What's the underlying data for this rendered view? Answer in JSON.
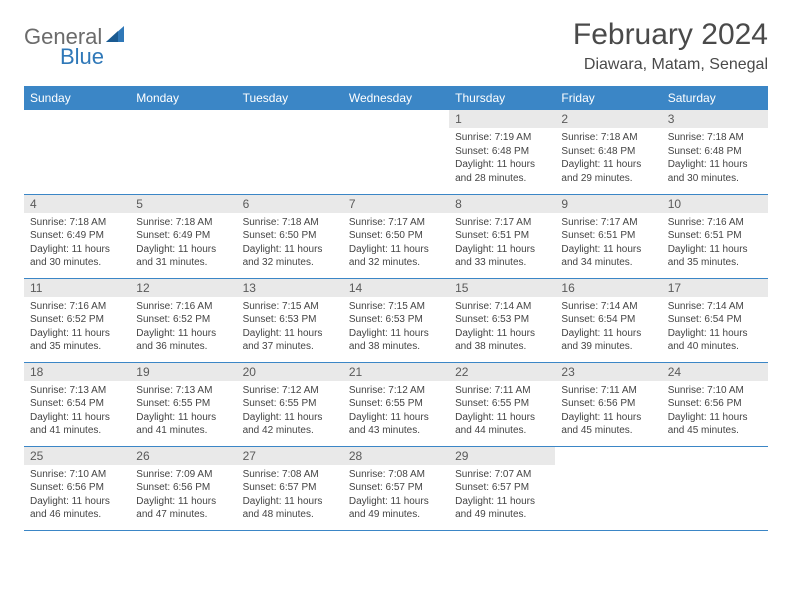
{
  "brand": {
    "part1": "General",
    "part2": "Blue"
  },
  "title": "February 2024",
  "location": "Diawara, Matam, Senegal",
  "colors": {
    "header_bg": "#3b86c6",
    "header_text": "#ffffff",
    "daynum_bg": "#e9e9e9",
    "border": "#3b86c6",
    "brand_gray": "#6b6b6b",
    "brand_blue": "#2f78b8"
  },
  "dayNames": [
    "Sunday",
    "Monday",
    "Tuesday",
    "Wednesday",
    "Thursday",
    "Friday",
    "Saturday"
  ],
  "weeks": [
    [
      null,
      null,
      null,
      null,
      {
        "n": "1",
        "sr": "Sunrise: 7:19 AM",
        "ss": "Sunset: 6:48 PM",
        "dl": "Daylight: 11 hours and 28 minutes."
      },
      {
        "n": "2",
        "sr": "Sunrise: 7:18 AM",
        "ss": "Sunset: 6:48 PM",
        "dl": "Daylight: 11 hours and 29 minutes."
      },
      {
        "n": "3",
        "sr": "Sunrise: 7:18 AM",
        "ss": "Sunset: 6:48 PM",
        "dl": "Daylight: 11 hours and 30 minutes."
      }
    ],
    [
      {
        "n": "4",
        "sr": "Sunrise: 7:18 AM",
        "ss": "Sunset: 6:49 PM",
        "dl": "Daylight: 11 hours and 30 minutes."
      },
      {
        "n": "5",
        "sr": "Sunrise: 7:18 AM",
        "ss": "Sunset: 6:49 PM",
        "dl": "Daylight: 11 hours and 31 minutes."
      },
      {
        "n": "6",
        "sr": "Sunrise: 7:18 AM",
        "ss": "Sunset: 6:50 PM",
        "dl": "Daylight: 11 hours and 32 minutes."
      },
      {
        "n": "7",
        "sr": "Sunrise: 7:17 AM",
        "ss": "Sunset: 6:50 PM",
        "dl": "Daylight: 11 hours and 32 minutes."
      },
      {
        "n": "8",
        "sr": "Sunrise: 7:17 AM",
        "ss": "Sunset: 6:51 PM",
        "dl": "Daylight: 11 hours and 33 minutes."
      },
      {
        "n": "9",
        "sr": "Sunrise: 7:17 AM",
        "ss": "Sunset: 6:51 PM",
        "dl": "Daylight: 11 hours and 34 minutes."
      },
      {
        "n": "10",
        "sr": "Sunrise: 7:16 AM",
        "ss": "Sunset: 6:51 PM",
        "dl": "Daylight: 11 hours and 35 minutes."
      }
    ],
    [
      {
        "n": "11",
        "sr": "Sunrise: 7:16 AM",
        "ss": "Sunset: 6:52 PM",
        "dl": "Daylight: 11 hours and 35 minutes."
      },
      {
        "n": "12",
        "sr": "Sunrise: 7:16 AM",
        "ss": "Sunset: 6:52 PM",
        "dl": "Daylight: 11 hours and 36 minutes."
      },
      {
        "n": "13",
        "sr": "Sunrise: 7:15 AM",
        "ss": "Sunset: 6:53 PM",
        "dl": "Daylight: 11 hours and 37 minutes."
      },
      {
        "n": "14",
        "sr": "Sunrise: 7:15 AM",
        "ss": "Sunset: 6:53 PM",
        "dl": "Daylight: 11 hours and 38 minutes."
      },
      {
        "n": "15",
        "sr": "Sunrise: 7:14 AM",
        "ss": "Sunset: 6:53 PM",
        "dl": "Daylight: 11 hours and 38 minutes."
      },
      {
        "n": "16",
        "sr": "Sunrise: 7:14 AM",
        "ss": "Sunset: 6:54 PM",
        "dl": "Daylight: 11 hours and 39 minutes."
      },
      {
        "n": "17",
        "sr": "Sunrise: 7:14 AM",
        "ss": "Sunset: 6:54 PM",
        "dl": "Daylight: 11 hours and 40 minutes."
      }
    ],
    [
      {
        "n": "18",
        "sr": "Sunrise: 7:13 AM",
        "ss": "Sunset: 6:54 PM",
        "dl": "Daylight: 11 hours and 41 minutes."
      },
      {
        "n": "19",
        "sr": "Sunrise: 7:13 AM",
        "ss": "Sunset: 6:55 PM",
        "dl": "Daylight: 11 hours and 41 minutes."
      },
      {
        "n": "20",
        "sr": "Sunrise: 7:12 AM",
        "ss": "Sunset: 6:55 PM",
        "dl": "Daylight: 11 hours and 42 minutes."
      },
      {
        "n": "21",
        "sr": "Sunrise: 7:12 AM",
        "ss": "Sunset: 6:55 PM",
        "dl": "Daylight: 11 hours and 43 minutes."
      },
      {
        "n": "22",
        "sr": "Sunrise: 7:11 AM",
        "ss": "Sunset: 6:55 PM",
        "dl": "Daylight: 11 hours and 44 minutes."
      },
      {
        "n": "23",
        "sr": "Sunrise: 7:11 AM",
        "ss": "Sunset: 6:56 PM",
        "dl": "Daylight: 11 hours and 45 minutes."
      },
      {
        "n": "24",
        "sr": "Sunrise: 7:10 AM",
        "ss": "Sunset: 6:56 PM",
        "dl": "Daylight: 11 hours and 45 minutes."
      }
    ],
    [
      {
        "n": "25",
        "sr": "Sunrise: 7:10 AM",
        "ss": "Sunset: 6:56 PM",
        "dl": "Daylight: 11 hours and 46 minutes."
      },
      {
        "n": "26",
        "sr": "Sunrise: 7:09 AM",
        "ss": "Sunset: 6:56 PM",
        "dl": "Daylight: 11 hours and 47 minutes."
      },
      {
        "n": "27",
        "sr": "Sunrise: 7:08 AM",
        "ss": "Sunset: 6:57 PM",
        "dl": "Daylight: 11 hours and 48 minutes."
      },
      {
        "n": "28",
        "sr": "Sunrise: 7:08 AM",
        "ss": "Sunset: 6:57 PM",
        "dl": "Daylight: 11 hours and 49 minutes."
      },
      {
        "n": "29",
        "sr": "Sunrise: 7:07 AM",
        "ss": "Sunset: 6:57 PM",
        "dl": "Daylight: 11 hours and 49 minutes."
      },
      null,
      null
    ]
  ]
}
